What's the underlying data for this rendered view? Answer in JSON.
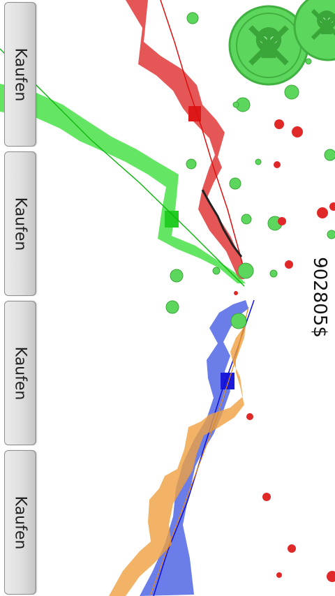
{
  "buttons": [
    {
      "label": "Kaufen"
    },
    {
      "label": "Kaufen"
    },
    {
      "label": "Kaufen"
    },
    {
      "label": "Kaufen"
    }
  ],
  "balance": "902805$",
  "colors": {
    "red_track": "#e03a3a",
    "green_track": "#3de03d",
    "blue_track": "#3a52e0",
    "orange_track": "#f0a040",
    "coin_green": "#5cd65c",
    "coin_red": "#e02828"
  },
  "icons": [
    "skull-crossbones-icon"
  ]
}
